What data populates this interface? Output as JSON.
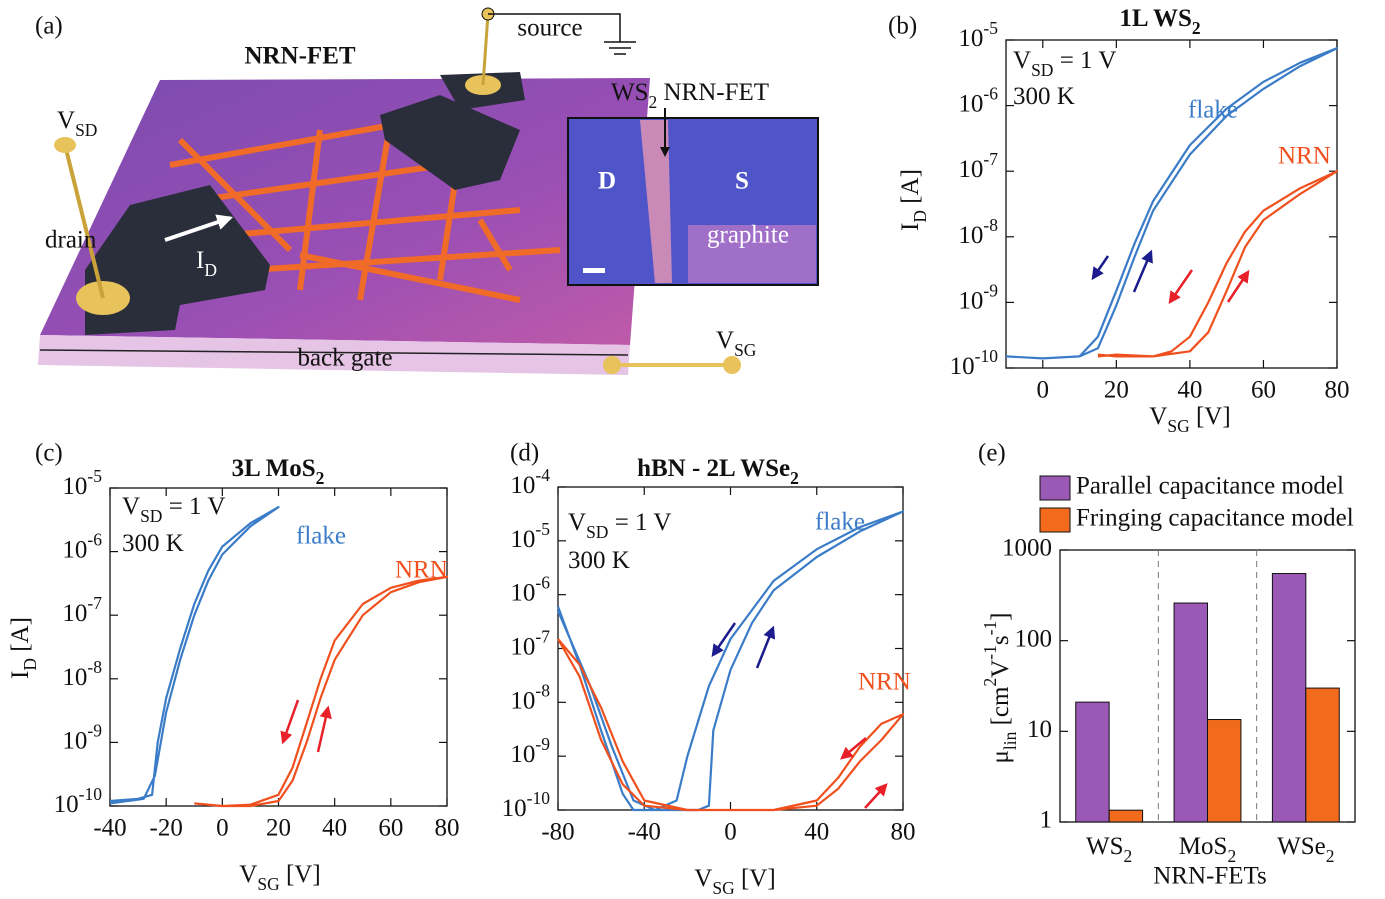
{
  "panel_a": {
    "panel_label": "(a)",
    "title": "NRN-FET",
    "source": "source",
    "drain": "drain",
    "vsd": [
      {
        "text": "V"
      },
      {
        "sub": "SD"
      }
    ],
    "id": [
      {
        "text": "I"
      },
      {
        "sub": "D"
      }
    ],
    "back_gate": "back gate",
    "vsg": [
      {
        "text": "V"
      },
      {
        "sub": "SG"
      }
    ],
    "inset": {
      "title": [
        {
          "text": "WS"
        },
        {
          "sub": "2"
        },
        {
          "text": " NRN-FET"
        }
      ],
      "d": "D",
      "s": "S",
      "graphite": "graphite"
    }
  },
  "chart_data": [
    {
      "panel_label": "(b)",
      "type": "line",
      "title": [
        {
          "text": "1L WS"
        },
        {
          "sub": "2"
        }
      ],
      "xlabel": [
        {
          "text": "V"
        },
        {
          "sub": "SG"
        },
        {
          "text": " [V]"
        }
      ],
      "ylabel": [
        {
          "text": "I"
        },
        {
          "sub": "D"
        },
        {
          "text": " [A]"
        }
      ],
      "annotations": [
        [
          {
            "text": "V"
          },
          {
            "sub": "SD"
          },
          {
            "text": " = 1 V"
          }
        ],
        [
          {
            "text": "300 K"
          }
        ]
      ],
      "yscale": "log",
      "xlim": [
        -10,
        80
      ],
      "xticks": [
        0,
        20,
        40,
        60,
        80
      ],
      "ylim": [
        1e-10,
        1e-05
      ],
      "yticks": [
        {
          "value": 1e-10,
          "label": "10",
          "exp": "-10"
        },
        {
          "value": 1e-09,
          "label": "10",
          "exp": "-9"
        },
        {
          "value": 1e-08,
          "label": "10",
          "exp": "-8"
        },
        {
          "value": 1e-07,
          "label": "10",
          "exp": "-7"
        },
        {
          "value": 1e-06,
          "label": "10",
          "exp": "-6"
        },
        {
          "value": 1e-05,
          "label": "10",
          "exp": "-5"
        }
      ],
      "series": [
        {
          "name": "flake",
          "color": "#3b7cc8",
          "x": [
            -10,
            0,
            10,
            15,
            20,
            25,
            30,
            40,
            50,
            60,
            70,
            80,
            70,
            60,
            50,
            40,
            30,
            25,
            20,
            15,
            10,
            0,
            -10
          ],
          "values": [
            1.5e-10,
            1.4e-10,
            1.5e-10,
            2e-10,
            9e-10,
            5e-09,
            2.5e-08,
            1.8e-07,
            7e-07,
            1.8e-06,
            4e-06,
            7.5e-06,
            4.5e-06,
            2.3e-06,
            9e-07,
            2.5e-07,
            3.5e-08,
            8e-09,
            1.5e-09,
            3e-10,
            1.5e-10,
            1.4e-10,
            1.5e-10
          ]
        },
        {
          "name": "NRN",
          "color": "#f0501e",
          "x": [
            15,
            20,
            30,
            35,
            40,
            45,
            50,
            55,
            60,
            70,
            80,
            70,
            60,
            55,
            50,
            45,
            40,
            30,
            20,
            15
          ],
          "values": [
            1.6e-10,
            1.5e-10,
            1.5e-10,
            1.8e-10,
            3e-10,
            1e-09,
            4e-09,
            1.2e-08,
            2.5e-08,
            5.5e-08,
            1e-07,
            4.5e-08,
            1.8e-08,
            7e-09,
            1.5e-09,
            3.5e-10,
            1.8e-10,
            1.5e-10,
            1.6e-10,
            1.5e-10
          ]
        }
      ]
    },
    {
      "panel_label": "(c)",
      "type": "line",
      "title": [
        {
          "text": "3L MoS"
        },
        {
          "sub": "2"
        }
      ],
      "xlabel": [
        {
          "text": "V"
        },
        {
          "sub": "SG"
        },
        {
          "text": " [V]"
        }
      ],
      "ylabel": [
        {
          "text": "I"
        },
        {
          "sub": "D"
        },
        {
          "text": " [A]"
        }
      ],
      "annotations": [
        [
          {
            "text": "V"
          },
          {
            "sub": "SD"
          },
          {
            "text": " = 1 V"
          }
        ],
        [
          {
            "text": "300 K"
          }
        ]
      ],
      "yscale": "log",
      "xlim": [
        -40,
        80
      ],
      "xticks": [
        -40,
        -20,
        0,
        20,
        40,
        60,
        80
      ],
      "ylim": [
        1e-10,
        1e-05
      ],
      "yticks": [
        {
          "value": 1e-10,
          "label": "10",
          "exp": "-10"
        },
        {
          "value": 1e-09,
          "label": "10",
          "exp": "-9"
        },
        {
          "value": 1e-08,
          "label": "10",
          "exp": "-8"
        },
        {
          "value": 1e-07,
          "label": "10",
          "exp": "-7"
        },
        {
          "value": 1e-06,
          "label": "10",
          "exp": "-6"
        },
        {
          "value": 1e-05,
          "label": "10",
          "exp": "-5"
        }
      ],
      "series": [
        {
          "name": "flake",
          "color": "#3b7cc8",
          "x": [
            -40,
            -30,
            -25,
            -23,
            -20,
            -15,
            -10,
            -5,
            0,
            10,
            20,
            10,
            0,
            -5,
            -10,
            -15,
            -20,
            -24,
            -28,
            -40
          ],
          "values": [
            1.2e-10,
            1.3e-10,
            1.5e-10,
            1e-09,
            5e-09,
            3e-08,
            1.5e-07,
            5e-07,
            1.2e-06,
            2.8e-06,
            5e-06,
            2.5e-06,
            9e-07,
            3.5e-07,
            1e-07,
            2e-08,
            3e-09,
            3e-10,
            1.3e-10,
            1.1e-10
          ]
        },
        {
          "name": "NRN",
          "color": "#f0501e",
          "x": [
            -10,
            0,
            10,
            20,
            25,
            30,
            35,
            40,
            50,
            60,
            70,
            80,
            70,
            60,
            50,
            40,
            35,
            30,
            25,
            20,
            10,
            0,
            -10
          ],
          "values": [
            1.1e-10,
            1e-10,
            1.05e-10,
            1.5e-10,
            4e-10,
            2e-09,
            1e-08,
            4e-08,
            1.5e-07,
            2.7e-07,
            3.5e-07,
            4e-07,
            3.3e-07,
            2.3e-07,
            1e-07,
            2e-08,
            5e-09,
            1e-09,
            2.5e-10,
            1.2e-10,
            1e-10,
            1e-10,
            1.1e-10
          ]
        }
      ]
    },
    {
      "panel_label": "(d)",
      "type": "line",
      "title": [
        {
          "text": "hBN - 2L WSe"
        },
        {
          "sub": "2"
        }
      ],
      "xlabel": [
        {
          "text": "V"
        },
        {
          "sub": "SG"
        },
        {
          "text": " [V]"
        }
      ],
      "annotations": [
        [
          {
            "text": "V"
          },
          {
            "sub": "SD"
          },
          {
            "text": " = 1 V"
          }
        ],
        [
          {
            "text": "300 K"
          }
        ]
      ],
      "yscale": "log",
      "xlim": [
        -80,
        80
      ],
      "xticks": [
        -80,
        -40,
        0,
        40,
        80
      ],
      "ylim": [
        1e-10,
        0.0001
      ],
      "yticks": [
        {
          "value": 1e-10,
          "label": "10",
          "exp": "-10"
        },
        {
          "value": 1e-09,
          "label": "10",
          "exp": "-9"
        },
        {
          "value": 1e-08,
          "label": "10",
          "exp": "-8"
        },
        {
          "value": 1e-07,
          "label": "10",
          "exp": "-7"
        },
        {
          "value": 1e-06,
          "label": "10",
          "exp": "-6"
        },
        {
          "value": 1e-05,
          "label": "10",
          "exp": "-5"
        },
        {
          "value": 0.0001,
          "label": "10",
          "exp": "-4"
        }
      ],
      "series": [
        {
          "name": "flake",
          "color": "#3b7cc8",
          "x": [
            -80,
            -70,
            -60,
            -50,
            -45,
            -30,
            -15,
            -10,
            -8,
            0,
            10,
            20,
            40,
            60,
            80,
            60,
            40,
            20,
            0,
            -10,
            -20,
            -25,
            -35,
            -45,
            -55,
            -65,
            -80
          ],
          "values": [
            6e-07,
            5e-08,
            3e-09,
            2e-10,
            1e-10,
            1e-10,
            1e-10,
            1.2e-10,
            3e-09,
            4e-08,
            3e-07,
            1.2e-06,
            5e-06,
            1.5e-05,
            3.5e-05,
            1.8e-05,
            7e-06,
            1.8e-06,
            1.5e-07,
            2e-08,
            1e-09,
            1.5e-10,
            1e-10,
            1.5e-10,
            1.5e-09,
            2e-08,
            5e-07
          ]
        },
        {
          "name": "NRN",
          "color": "#f0501e",
          "x": [
            -80,
            -70,
            -60,
            -50,
            -40,
            -20,
            0,
            20,
            40,
            50,
            60,
            70,
            80,
            70,
            60,
            50,
            40,
            20,
            0,
            -20,
            -40,
            -50,
            -60,
            -70,
            -80
          ],
          "values": [
            1.5e-07,
            3e-08,
            2e-09,
            3e-10,
            1.2e-10,
            1e-10,
            1e-10,
            1e-10,
            1.2e-10,
            2.5e-10,
            8e-10,
            2e-09,
            6e-09,
            4e-09,
            1.5e-09,
            4e-10,
            1.5e-10,
            1e-10,
            1e-10,
            1e-10,
            1.5e-10,
            8e-10,
            8e-09,
            5e-08,
            1.5e-07
          ]
        }
      ]
    },
    {
      "panel_label": "(e)",
      "type": "bar",
      "xlabel": "NRN-FETs",
      "ylabel": [
        {
          "text": "μ"
        },
        {
          "sub": "lin"
        },
        {
          "text": " [cm"
        },
        {
          "sup": "2"
        },
        {
          "text": "V"
        },
        {
          "sup": "-1"
        },
        {
          "text": "s"
        },
        {
          "sup": "-1"
        },
        {
          "text": "]"
        }
      ],
      "categories": [
        [
          {
            "text": "WS"
          },
          {
            "sub": "2"
          }
        ],
        [
          {
            "text": "MoS"
          },
          {
            "sub": "2"
          }
        ],
        [
          {
            "text": "WSe"
          },
          {
            "sub": "2"
          }
        ]
      ],
      "yscale": "log",
      "ylim": [
        1,
        1000
      ],
      "yticks": [
        1,
        10,
        100,
        1000
      ],
      "legend": "top-left",
      "series": [
        {
          "name": "Parallel capacitance model",
          "color": "#9b59b6",
          "values": [
            21,
            260,
            550
          ]
        },
        {
          "name": "Fringing capacitance model",
          "color": "#f26a1b",
          "values": [
            1.35,
            13.5,
            30
          ]
        }
      ]
    }
  ]
}
